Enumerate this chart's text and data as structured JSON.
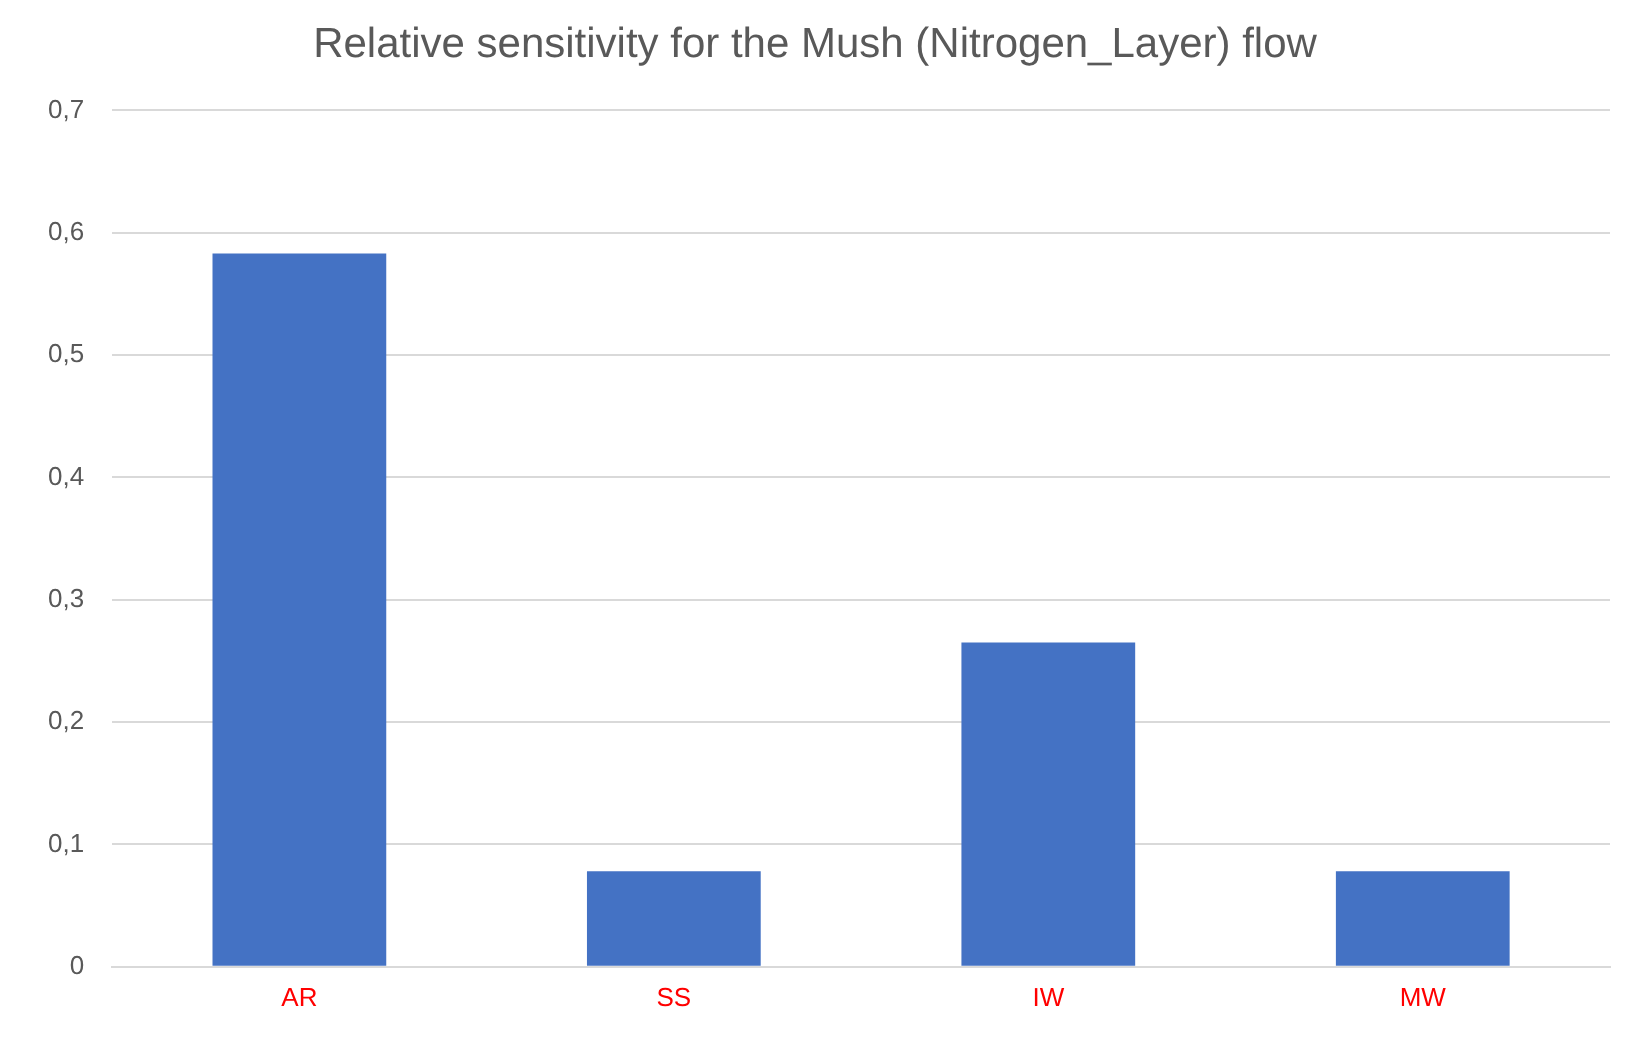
{
  "chart_data": {
    "type": "bar",
    "title": "Relative sensitivity for the Mush (Nitrogen_Layer) flow",
    "categories": [
      "AR",
      "SS",
      "IW",
      "MW"
    ],
    "values": [
      0.583,
      0.078,
      0.265,
      0.078
    ],
    "color": "#4472c4",
    "ylim": [
      0,
      0.7
    ],
    "yticks": [
      {
        "value": 0,
        "label": "0"
      },
      {
        "value": 0.1,
        "label": "0,1"
      },
      {
        "value": 0.2,
        "label": "0,2"
      },
      {
        "value": 0.3,
        "label": "0,3"
      },
      {
        "value": 0.4,
        "label": "0,4"
      },
      {
        "value": 0.5,
        "label": "0,5"
      },
      {
        "value": 0.6,
        "label": "0,6"
      },
      {
        "value": 0.7,
        "label": "0,7"
      }
    ],
    "grid": "y"
  }
}
